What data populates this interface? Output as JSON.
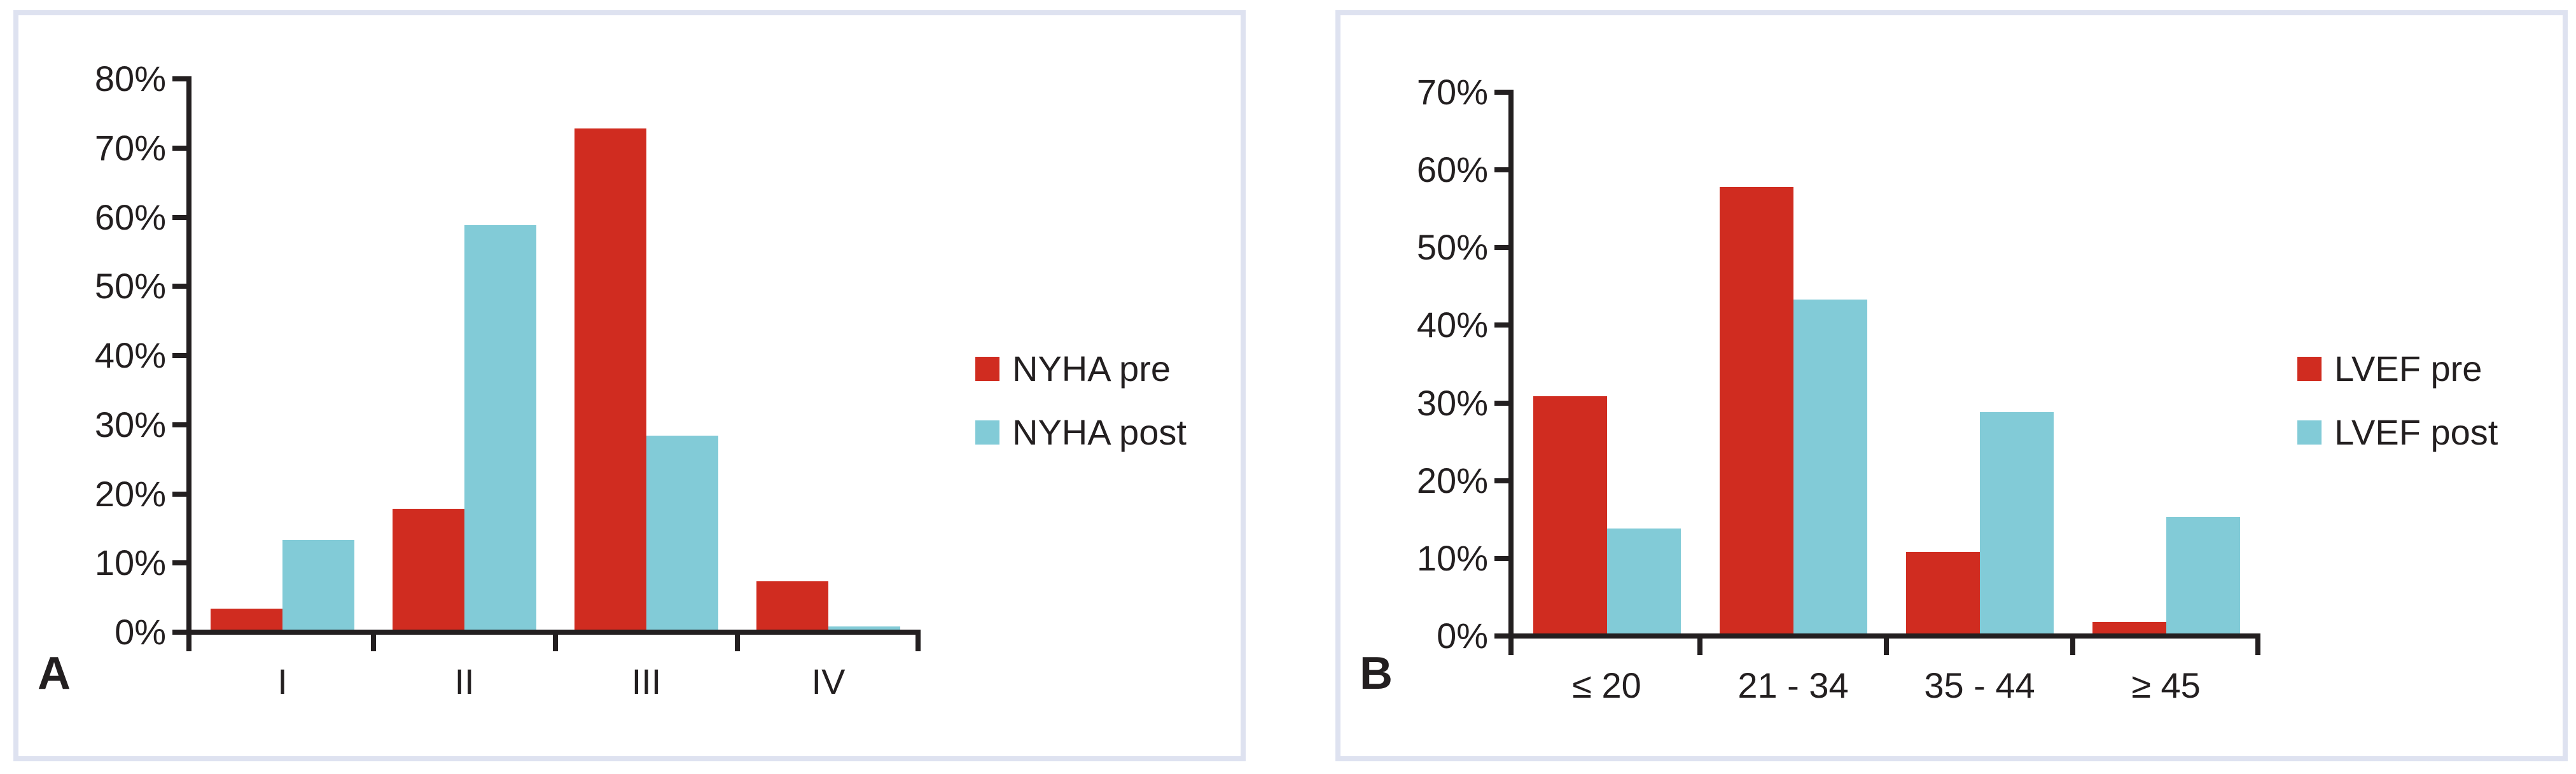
{
  "colors": {
    "pre": "#d02c20",
    "post": "#82cbd7",
    "axis": "#231f20",
    "panel_border": "#dee2f0",
    "background": "#ffffff"
  },
  "chart_data": [
    {
      "type": "bar",
      "panel_label": "A",
      "title": "",
      "xlabel": "",
      "ylabel": "",
      "categories": [
        "I",
        "II",
        "III",
        "IV"
      ],
      "series": [
        {
          "name": "NYHA pre",
          "color_key": "pre",
          "values": [
            3,
            17.5,
            72.5,
            7
          ]
        },
        {
          "name": "NYHA post",
          "color_key": "post",
          "values": [
            13,
            58.5,
            28,
            0.5
          ]
        }
      ],
      "ylim": [
        0,
        80
      ],
      "ytick_step": 10,
      "ytick_labels": [
        "0%",
        "10%",
        "20%",
        "30%",
        "40%",
        "50%",
        "60%",
        "70%",
        "80%"
      ],
      "grid": false,
      "legend_position": "right-middle",
      "legend": [
        "NYHA pre",
        "NYHA post"
      ]
    },
    {
      "type": "bar",
      "panel_label": "B",
      "title": "",
      "xlabel": "",
      "ylabel": "",
      "categories": [
        "≤ 20",
        "21 - 34",
        "35 - 44",
        "≥ 45"
      ],
      "series": [
        {
          "name": "LVEF pre",
          "color_key": "pre",
          "values": [
            30.5,
            57.5,
            10.5,
            1.5
          ]
        },
        {
          "name": "LVEF post",
          "color_key": "post",
          "values": [
            13.5,
            43,
            28.5,
            15
          ]
        }
      ],
      "ylim": [
        0,
        70
      ],
      "ytick_step": 10,
      "ytick_labels": [
        "0%",
        "10%",
        "20%",
        "30%",
        "40%",
        "50%",
        "60%",
        "70%"
      ],
      "grid": false,
      "legend_position": "right-middle",
      "legend": [
        "LVEF pre",
        "LVEF post"
      ]
    }
  ]
}
